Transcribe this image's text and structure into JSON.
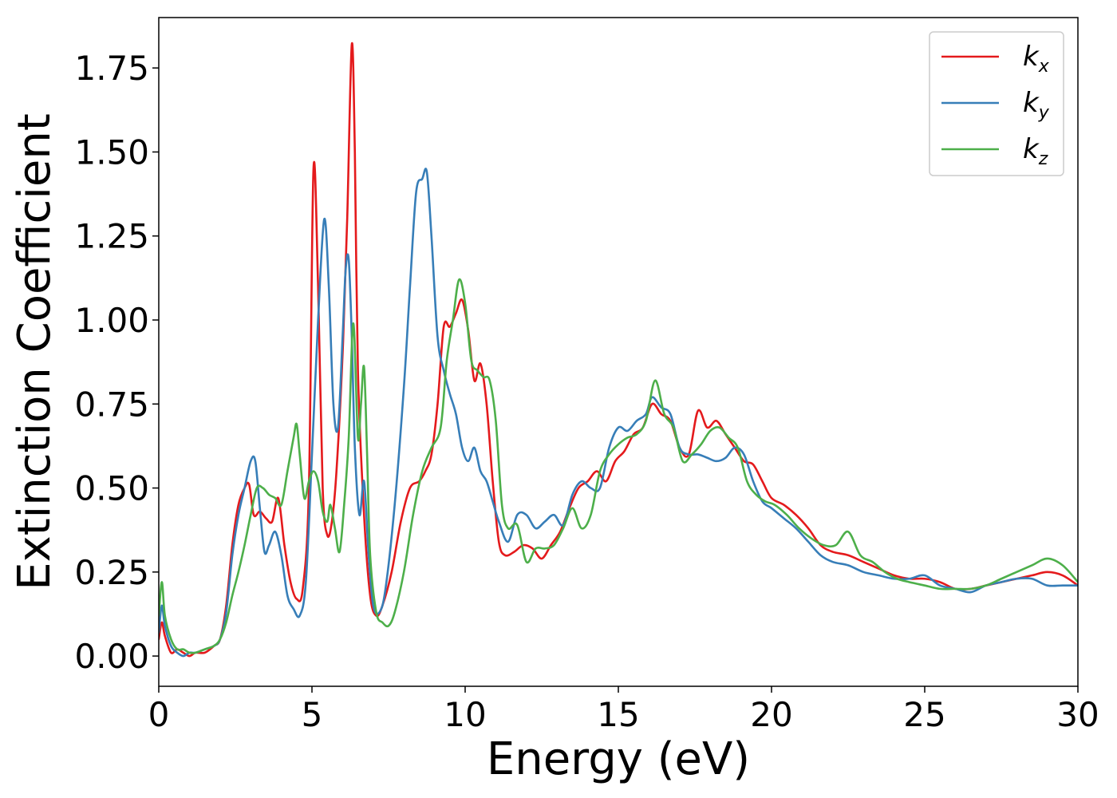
{
  "chart_data": {
    "type": "line",
    "xlabel": "Energy (eV)",
    "ylabel": "Extinction Coefficient",
    "xlim": [
      0,
      30
    ],
    "ylim": [
      -0.09,
      1.9
    ],
    "x_ticks": [
      "0",
      "5",
      "10",
      "15",
      "20",
      "25",
      "30"
    ],
    "x_tick_values": [
      0,
      5,
      10,
      15,
      20,
      25,
      30
    ],
    "y_ticks": [
      "0.00",
      "0.25",
      "0.50",
      "0.75",
      "1.00",
      "1.25",
      "1.50",
      "1.75"
    ],
    "y_tick_values": [
      0,
      0.25,
      0.5,
      0.75,
      1.0,
      1.25,
      1.5,
      1.75
    ],
    "grid": false,
    "legend_position": "top-right",
    "series": [
      {
        "name": "k",
        "subscript": "x",
        "color": "#e41a1c",
        "x": [
          0,
          0.1,
          0.2,
          0.4,
          0.6,
          0.8,
          1.0,
          1.2,
          1.5,
          1.8,
          2.0,
          2.2,
          2.4,
          2.6,
          2.8,
          2.95,
          3.1,
          3.3,
          3.5,
          3.7,
          3.9,
          4.1,
          4.3,
          4.5,
          4.7,
          4.9,
          5.05,
          5.2,
          5.35,
          5.5,
          5.65,
          5.8,
          6.0,
          6.15,
          6.3,
          6.4,
          6.5,
          6.7,
          6.9,
          7.1,
          7.3,
          7.6,
          7.9,
          8.2,
          8.5,
          8.7,
          8.9,
          9.1,
          9.3,
          9.5,
          9.7,
          9.9,
          10.1,
          10.3,
          10.5,
          10.7,
          10.9,
          11.1,
          11.3,
          11.6,
          11.9,
          12.2,
          12.5,
          12.8,
          13.1,
          13.4,
          13.7,
          14.0,
          14.3,
          14.6,
          14.9,
          15.2,
          15.5,
          15.8,
          16.1,
          16.4,
          16.7,
          17.0,
          17.3,
          17.6,
          17.9,
          18.2,
          18.5,
          18.8,
          19.1,
          19.4,
          19.7,
          20.0,
          20.4,
          20.8,
          21.2,
          21.6,
          22.0,
          22.5,
          23.0,
          23.5,
          24.0,
          24.5,
          25.0,
          25.5,
          26.0,
          26.5,
          27.0,
          27.5,
          28.0,
          28.5,
          29.0,
          29.5,
          30.0
        ],
        "y": [
          0.05,
          0.1,
          0.06,
          0.01,
          0.02,
          0.01,
          0.0,
          0.01,
          0.01,
          0.03,
          0.05,
          0.15,
          0.33,
          0.45,
          0.5,
          0.51,
          0.42,
          0.43,
          0.41,
          0.4,
          0.47,
          0.33,
          0.22,
          0.17,
          0.2,
          0.5,
          1.45,
          1.1,
          0.5,
          0.36,
          0.4,
          0.55,
          0.9,
          1.3,
          1.82,
          1.5,
          0.85,
          0.42,
          0.18,
          0.12,
          0.15,
          0.25,
          0.4,
          0.5,
          0.52,
          0.55,
          0.6,
          0.75,
          0.98,
          0.98,
          1.02,
          1.06,
          0.97,
          0.82,
          0.87,
          0.75,
          0.52,
          0.34,
          0.3,
          0.31,
          0.33,
          0.32,
          0.29,
          0.33,
          0.37,
          0.44,
          0.5,
          0.52,
          0.55,
          0.52,
          0.58,
          0.61,
          0.66,
          0.68,
          0.75,
          0.72,
          0.7,
          0.62,
          0.6,
          0.73,
          0.68,
          0.7,
          0.66,
          0.62,
          0.58,
          0.57,
          0.52,
          0.47,
          0.45,
          0.42,
          0.38,
          0.33,
          0.31,
          0.3,
          0.28,
          0.26,
          0.24,
          0.23,
          0.23,
          0.22,
          0.2,
          0.2,
          0.21,
          0.22,
          0.23,
          0.24,
          0.25,
          0.24,
          0.21
        ]
      },
      {
        "name": "k",
        "subscript": "y",
        "color": "#377eb8",
        "x": [
          0,
          0.1,
          0.2,
          0.4,
          0.6,
          0.8,
          1.0,
          1.2,
          1.5,
          1.8,
          2.0,
          2.2,
          2.4,
          2.6,
          2.8,
          3.0,
          3.15,
          3.3,
          3.45,
          3.6,
          3.8,
          4.0,
          4.2,
          4.4,
          4.6,
          4.8,
          5.0,
          5.2,
          5.4,
          5.55,
          5.7,
          5.85,
          6.0,
          6.1,
          6.2,
          6.3,
          6.4,
          6.55,
          6.7,
          6.85,
          7.0,
          7.2,
          7.4,
          7.7,
          8.0,
          8.2,
          8.4,
          8.6,
          8.75,
          8.9,
          9.1,
          9.3,
          9.5,
          9.7,
          9.9,
          10.1,
          10.3,
          10.5,
          10.7,
          10.9,
          11.1,
          11.4,
          11.7,
          12.0,
          12.3,
          12.6,
          12.9,
          13.2,
          13.5,
          13.8,
          14.1,
          14.4,
          14.7,
          15.0,
          15.3,
          15.6,
          15.9,
          16.1,
          16.4,
          16.7,
          17.0,
          17.3,
          17.6,
          17.9,
          18.2,
          18.5,
          18.8,
          19.1,
          19.4,
          19.7,
          20.0,
          20.4,
          20.8,
          21.2,
          21.6,
          22.0,
          22.5,
          23.0,
          23.5,
          24.0,
          24.5,
          25.0,
          25.5,
          26.0,
          26.5,
          27.0,
          27.5,
          28.0,
          28.5,
          29.0,
          29.5,
          30.0
        ],
        "y": [
          0.07,
          0.15,
          0.09,
          0.03,
          0.01,
          0.0,
          0.01,
          0.01,
          0.02,
          0.03,
          0.05,
          0.13,
          0.3,
          0.42,
          0.5,
          0.58,
          0.58,
          0.44,
          0.31,
          0.33,
          0.37,
          0.3,
          0.18,
          0.14,
          0.12,
          0.22,
          0.6,
          1.0,
          1.3,
          1.1,
          0.75,
          0.68,
          0.95,
          1.15,
          1.18,
          0.95,
          0.62,
          0.42,
          0.52,
          0.3,
          0.15,
          0.13,
          0.2,
          0.45,
          0.8,
          1.1,
          1.38,
          1.42,
          1.44,
          1.25,
          0.95,
          0.85,
          0.78,
          0.72,
          0.62,
          0.58,
          0.62,
          0.55,
          0.52,
          0.46,
          0.4,
          0.34,
          0.42,
          0.42,
          0.38,
          0.4,
          0.42,
          0.39,
          0.48,
          0.52,
          0.5,
          0.5,
          0.62,
          0.68,
          0.67,
          0.7,
          0.72,
          0.77,
          0.74,
          0.72,
          0.62,
          0.6,
          0.6,
          0.59,
          0.58,
          0.59,
          0.62,
          0.6,
          0.52,
          0.46,
          0.44,
          0.41,
          0.38,
          0.34,
          0.3,
          0.28,
          0.27,
          0.25,
          0.24,
          0.23,
          0.23,
          0.24,
          0.21,
          0.2,
          0.19,
          0.21,
          0.22,
          0.23,
          0.23,
          0.21,
          0.21,
          0.21
        ]
      },
      {
        "name": "k",
        "subscript": "z",
        "color": "#4daf4a",
        "x": [
          0,
          0.1,
          0.2,
          0.4,
          0.6,
          0.8,
          1.0,
          1.2,
          1.5,
          1.8,
          2.0,
          2.2,
          2.4,
          2.6,
          2.8,
          3.0,
          3.2,
          3.4,
          3.6,
          3.8,
          4.0,
          4.2,
          4.4,
          4.5,
          4.6,
          4.75,
          4.9,
          5.05,
          5.2,
          5.35,
          5.5,
          5.6,
          5.75,
          5.9,
          6.05,
          6.2,
          6.35,
          6.5,
          6.6,
          6.7,
          6.8,
          6.9,
          7.1,
          7.3,
          7.5,
          7.7,
          8.0,
          8.3,
          8.6,
          8.9,
          9.2,
          9.4,
          9.6,
          9.8,
          10.0,
          10.2,
          10.4,
          10.6,
          10.8,
          11.0,
          11.2,
          11.4,
          11.7,
          12.0,
          12.3,
          12.6,
          12.9,
          13.2,
          13.5,
          13.8,
          14.1,
          14.4,
          14.7,
          15.0,
          15.3,
          15.6,
          15.9,
          16.2,
          16.5,
          16.8,
          17.1,
          17.4,
          17.7,
          18.0,
          18.3,
          18.6,
          18.9,
          19.2,
          19.5,
          19.8,
          20.1,
          20.5,
          20.9,
          21.3,
          21.7,
          22.1,
          22.5,
          22.9,
          23.3,
          23.7,
          24.1,
          24.5,
          25.0,
          25.5,
          26.0,
          26.5,
          27.0,
          27.5,
          28.0,
          28.5,
          29.0,
          29.5,
          30.0
        ],
        "y": [
          0.12,
          0.22,
          0.12,
          0.05,
          0.02,
          0.02,
          0.01,
          0.01,
          0.02,
          0.03,
          0.05,
          0.1,
          0.18,
          0.25,
          0.33,
          0.42,
          0.5,
          0.5,
          0.48,
          0.47,
          0.45,
          0.55,
          0.65,
          0.69,
          0.6,
          0.47,
          0.52,
          0.55,
          0.52,
          0.43,
          0.4,
          0.45,
          0.38,
          0.31,
          0.45,
          0.65,
          0.99,
          0.65,
          0.75,
          0.86,
          0.6,
          0.3,
          0.13,
          0.1,
          0.09,
          0.13,
          0.25,
          0.42,
          0.55,
          0.62,
          0.68,
          0.88,
          1.0,
          1.12,
          1.05,
          0.88,
          0.85,
          0.83,
          0.82,
          0.7,
          0.45,
          0.38,
          0.39,
          0.28,
          0.32,
          0.32,
          0.33,
          0.38,
          0.44,
          0.38,
          0.42,
          0.55,
          0.6,
          0.63,
          0.65,
          0.66,
          0.7,
          0.82,
          0.72,
          0.68,
          0.58,
          0.6,
          0.63,
          0.67,
          0.68,
          0.65,
          0.62,
          0.52,
          0.48,
          0.46,
          0.45,
          0.42,
          0.38,
          0.35,
          0.33,
          0.33,
          0.37,
          0.3,
          0.28,
          0.25,
          0.23,
          0.22,
          0.21,
          0.2,
          0.2,
          0.2,
          0.21,
          0.23,
          0.25,
          0.27,
          0.29,
          0.27,
          0.22
        ]
      }
    ]
  }
}
